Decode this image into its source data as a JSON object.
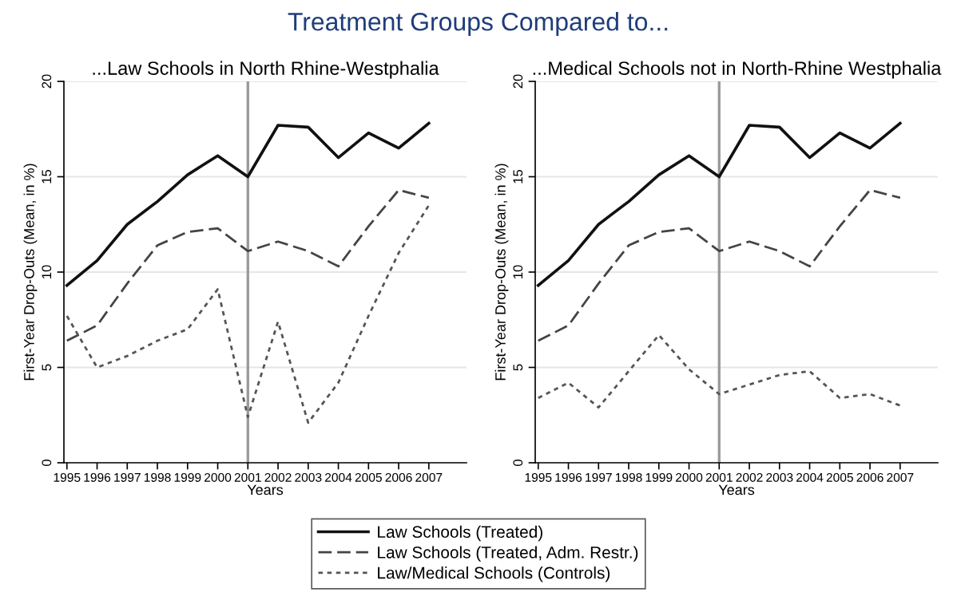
{
  "chart_data": [
    {
      "type": "line",
      "title": "Treatment Groups Compared to...",
      "subtitle": "...Law Schools in North Rhine-Westphalia",
      "xlabel": "Years",
      "ylabel": "First-Year Drop-Outs (Mean, in %)",
      "x": [
        1995,
        1996,
        1997,
        1998,
        1999,
        2000,
        2001,
        2002,
        2003,
        2004,
        2005,
        2006,
        2007
      ],
      "xlim": [
        1994.9,
        2008.25
      ],
      "xticks": [
        1995,
        1996,
        1997,
        1998,
        1999,
        2000,
        2001,
        2002,
        2003,
        2004,
        2005,
        2006,
        2007
      ],
      "ylim": [
        0,
        20
      ],
      "yticks": [
        0,
        5,
        10,
        15,
        20
      ],
      "grid": "y",
      "legend": "bottom",
      "ref_lines": [
        {
          "axis": "x",
          "value": 2001,
          "color": "#9a9a9a"
        }
      ],
      "series": [
        {
          "name": "Law Schools (Treated)",
          "color": "#111111",
          "line_style": "solid",
          "values": [
            9.3,
            10.6,
            12.5,
            13.7,
            15.1,
            16.1,
            15.0,
            17.7,
            17.6,
            16.0,
            17.3,
            16.5,
            17.8
          ]
        },
        {
          "name": "Law Schools (Treated, Adm. Restr.)",
          "color": "#444444",
          "line_style": "dashed",
          "values": [
            6.4,
            7.2,
            9.4,
            11.4,
            12.1,
            12.3,
            11.1,
            11.6,
            11.1,
            10.3,
            12.4,
            14.3,
            13.9
          ]
        },
        {
          "name": "Law/Medical Schools (Controls)",
          "color": "#555555",
          "line_style": "dotted",
          "values": [
            7.7,
            5.0,
            5.6,
            6.4,
            7.0,
            9.1,
            2.4,
            7.4,
            2.1,
            4.2,
            7.7,
            11.0,
            13.5
          ]
        }
      ]
    },
    {
      "type": "line",
      "subtitle": "...Medical Schools not in North-Rhine Westphalia",
      "xlabel": "Years",
      "ylabel": "First-Year Drop-Outs (Mean, in %)",
      "x": [
        1995,
        1996,
        1997,
        1998,
        1999,
        2000,
        2001,
        2002,
        2003,
        2004,
        2005,
        2006,
        2007
      ],
      "xlim": [
        1994.9,
        2008.25
      ],
      "xticks": [
        1995,
        1996,
        1997,
        1998,
        1999,
        2000,
        2001,
        2002,
        2003,
        2004,
        2005,
        2006,
        2007
      ],
      "ylim": [
        0,
        20
      ],
      "yticks": [
        0,
        5,
        10,
        15,
        20
      ],
      "grid": "y",
      "ref_lines": [
        {
          "axis": "x",
          "value": 2001,
          "color": "#9a9a9a"
        }
      ],
      "series": [
        {
          "color": "#111111",
          "line_style": "solid",
          "values": [
            9.3,
            10.6,
            12.5,
            13.7,
            15.1,
            16.1,
            15.0,
            17.7,
            17.6,
            16.0,
            17.3,
            16.5,
            17.8
          ]
        },
        {
          "color": "#444444",
          "line_style": "dashed",
          "values": [
            6.4,
            7.2,
            9.4,
            11.4,
            12.1,
            12.3,
            11.1,
            11.6,
            11.1,
            10.3,
            12.4,
            14.3,
            13.9
          ]
        },
        {
          "color": "#555555",
          "line_style": "dotted",
          "values": [
            3.4,
            4.2,
            2.9,
            4.8,
            6.7,
            4.9,
            3.6,
            4.1,
            4.6,
            4.8,
            3.4,
            3.6,
            3.0
          ]
        }
      ]
    }
  ]
}
